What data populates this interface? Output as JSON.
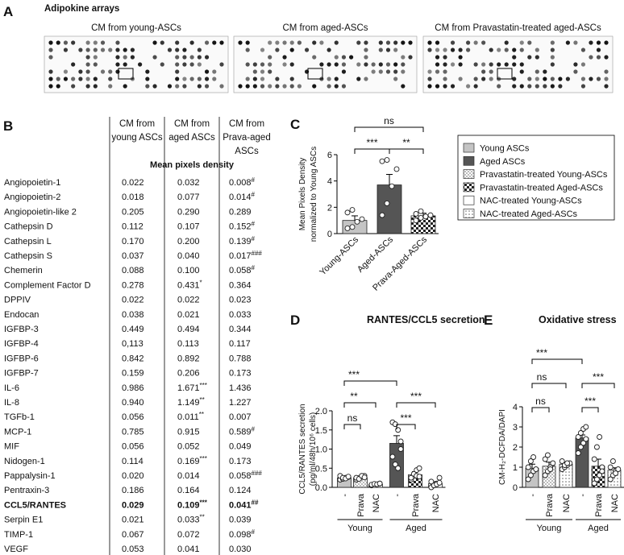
{
  "panel_a": {
    "label": "A",
    "title": "Adipokine arrays",
    "captions": [
      "CM from young-ASCs",
      "CM from aged-ASCs",
      "CM from Pravastatin-treated aged-ASCs"
    ]
  },
  "panel_b": {
    "label": "B",
    "columns": [
      "CM from young ASCs",
      "CM from aged ASCs",
      "CM from Prava-aged ASCs"
    ],
    "subheader": "Mean pixels density",
    "bold_row": 22,
    "rows": [
      [
        "Angiopoietin-1",
        "0.022",
        "0.032",
        {
          "text": "0.008",
          "sup": "#"
        }
      ],
      [
        "Angiopoietin-2",
        "0.018",
        "0.077",
        {
          "text": "0.014",
          "sup": "#"
        }
      ],
      [
        "Angiopoietin-like 2",
        "0.205",
        "0.290",
        "0.289"
      ],
      [
        "Cathepsin D",
        "0.112",
        "0.107",
        {
          "text": "0.152",
          "sup": "#"
        }
      ],
      [
        "Cathepsin L",
        "0.170",
        "0.200",
        {
          "text": "0.139",
          "sup": "#"
        }
      ],
      [
        "Cathepsin S",
        "0.037",
        "0.040",
        {
          "text": "0.017",
          "sup": "###"
        }
      ],
      [
        "Chemerin",
        "0.088",
        "0.100",
        {
          "text": "0.058",
          "sup": "#"
        }
      ],
      [
        "Complement Factor D",
        "0.278",
        {
          "text": "0.431",
          "sup": "*"
        },
        "0.364"
      ],
      [
        "DPPIV",
        "0.022",
        "0.022",
        "0.023"
      ],
      [
        "Endocan",
        "0.038",
        "0.021",
        "0.033"
      ],
      [
        "IGFBP-3",
        "0.449",
        "0.494",
        "0.344"
      ],
      [
        "IGFBP-4",
        "0,113",
        "0.113",
        "0.117"
      ],
      [
        "IGFBP-6",
        "0.842",
        "0.892",
        "0.788"
      ],
      [
        "IGFBP-7",
        "0.159",
        "0.206",
        "0.173"
      ],
      [
        "IL-6",
        "0.986",
        {
          "text": "1.671",
          "sup": "***"
        },
        "1.436"
      ],
      [
        "IL-8",
        "0.940",
        {
          "text": "1.149",
          "sup": "**"
        },
        "1.227"
      ],
      [
        "TGFb-1",
        "0.056",
        {
          "text": "0.011",
          "sup": "**"
        },
        "0.007"
      ],
      [
        "MCP-1",
        "0.785",
        "0.915",
        {
          "text": "0.589",
          "sup": "#"
        }
      ],
      [
        "MIF",
        "0.056",
        "0.052",
        "0.049"
      ],
      [
        "Nidogen-1",
        "0.114",
        {
          "text": "0.169",
          "sup": "***"
        },
        "0.173"
      ],
      [
        "Pappalysin-1",
        "0.020",
        "0.014",
        {
          "text": "0.058",
          "sup": "###"
        }
      ],
      [
        "Pentraxin-3",
        "0.186",
        "0.164",
        "0.124"
      ],
      [
        "CCL5/RANTES",
        "0.029",
        {
          "text": "0.109",
          "sup": "***"
        },
        {
          "text": "0.041",
          "sup": "##"
        }
      ],
      [
        "Serpin E1",
        "0.021",
        {
          "text": "0.033",
          "sup": "**"
        },
        "0.039"
      ],
      [
        "TIMP-1",
        "0.067",
        "0.072",
        {
          "text": "0.098",
          "sup": "#"
        }
      ],
      [
        "VEGF",
        "0.053",
        "0.041",
        "0.030"
      ]
    ]
  },
  "legend": [
    {
      "name": "Young ASCs",
      "pattern": "gray"
    },
    {
      "name": "Aged ASCs",
      "pattern": "dark"
    },
    {
      "name": "Pravastatin-treated Young-ASCs",
      "pattern": "grid-light"
    },
    {
      "name": "Pravastatin-treated Aged-ASCs",
      "pattern": "checker-dark"
    },
    {
      "name": "NAC-treated Young-ASCs",
      "pattern": "white"
    },
    {
      "name": "NAC-treated Aged-ASCs",
      "pattern": "dots"
    }
  ],
  "chart_data": [
    {
      "type": "bar",
      "panel": "C",
      "ylabel": [
        "Mean Pixels Density",
        "normalized to Young ASCs"
      ],
      "categories": [
        "Young-ASCs",
        "Aged-ASCs",
        "Prava-Aged-ASCs"
      ],
      "values": [
        1.0,
        3.7,
        1.35
      ],
      "errors": [
        0.35,
        0.8,
        0.2
      ],
      "patterns": [
        "gray",
        "dark",
        "checker-dark"
      ],
      "points": [
        [
          0.4,
          0.5,
          0.9,
          1.1,
          1.6,
          1.8
        ],
        [
          1.4,
          2.3,
          3.6,
          4.9,
          5.5,
          5.6
        ],
        [
          1.0,
          1.2,
          1.3,
          1.4,
          1.5,
          1.7
        ]
      ],
      "ylim": [
        0,
        6
      ],
      "yticks": [
        0,
        2,
        4,
        6
      ],
      "comparisons": [
        {
          "from": 0,
          "to": 1,
          "label": "***"
        },
        {
          "from": 1,
          "to": 2,
          "label": "**"
        },
        {
          "from": 0,
          "to": 2,
          "label": "ns"
        }
      ]
    },
    {
      "type": "bar",
      "panel": "D",
      "title": "RANTES/CCL5 secretion",
      "ylabel": [
        "CCL5/RANTES secretion",
        "(pg/ml/48h/10⁶ cells)"
      ],
      "categories": [
        "-",
        "Prava",
        "NAC",
        "-",
        "Prava",
        "NAC"
      ],
      "groups": [
        "Young",
        "Aged"
      ],
      "values": [
        0.25,
        0.25,
        0.08,
        1.15,
        0.33,
        0.1
      ],
      "errors": [
        0.03,
        0.03,
        0.02,
        0.2,
        0.08,
        0.05
      ],
      "patterns": [
        "gray",
        "grid-light",
        "white",
        "dark",
        "checker-dark",
        "dots"
      ],
      "points": [
        [
          0.2,
          0.22,
          0.25,
          0.27,
          0.3,
          0.25,
          0.23,
          0.28
        ],
        [
          0.2,
          0.24,
          0.27,
          0.3,
          0.25,
          0.22,
          0.3,
          0.26
        ],
        [
          0.05,
          0.06,
          0.08,
          0.1,
          0.07,
          0.09,
          0.08,
          0.1
        ],
        [
          1.7,
          1.65,
          1.5,
          1.2,
          0.8,
          0.6,
          0.5,
          1.0
        ],
        [
          0.2,
          0.3,
          0.45,
          0.5,
          0.25,
          0.35,
          0.3,
          0.28
        ],
        [
          0.0,
          0.05,
          0.1,
          0.25,
          0.15,
          0.05,
          0.08,
          0.12
        ]
      ],
      "ylim": [
        0,
        2
      ],
      "yticks": [
        {
          "value": 0,
          "label": "0.0"
        },
        0.5,
        {
          "value": 1,
          "label": "1.0"
        },
        1.5,
        {
          "value": 2,
          "label": "2.0"
        }
      ],
      "comparisons": [
        {
          "from": 0,
          "to": 1,
          "label": "ns"
        },
        {
          "from": 0,
          "to": 2,
          "label": "**"
        },
        {
          "from": 0,
          "to": 3,
          "label": "***"
        },
        {
          "from": 3,
          "to": 4,
          "label": "***"
        },
        {
          "from": 3,
          "to": 5,
          "label": "***"
        }
      ]
    },
    {
      "type": "bar",
      "panel": "E",
      "title": "Oxidative stress",
      "ylabel": [
        "CM-H₂-DCFDA/DAPI"
      ],
      "categories": [
        "-",
        "Prava",
        "NAC",
        "-",
        "Prava",
        "NAC"
      ],
      "groups": [
        "Young",
        "Aged"
      ],
      "values": [
        0.95,
        1.05,
        1.15,
        2.45,
        1.05,
        0.85
      ],
      "errors": [
        0.2,
        0.2,
        0.1,
        0.15,
        0.35,
        0.12
      ],
      "patterns": [
        "gray",
        "grid-light",
        "dots",
        "dark",
        "checker-dark",
        "dots"
      ],
      "points": [
        [
          0.4,
          0.6,
          0.8,
          0.9,
          1.0,
          1.3,
          1.5
        ],
        [
          0.6,
          0.8,
          1.0,
          1.2,
          1.4,
          1.6,
          0.9
        ],
        [
          0.9,
          1.0,
          1.1,
          1.2,
          1.3,
          1.1,
          1.2
        ],
        [
          1.7,
          2.0,
          2.2,
          2.4,
          2.5,
          2.7,
          2.9,
          3.0
        ],
        [
          0.2,
          0.4,
          0.6,
          1.0,
          1.4,
          2.0,
          2.5,
          0.8
        ],
        [
          0.4,
          0.6,
          0.8,
          0.9,
          1.0,
          1.3,
          0.7
        ]
      ],
      "ylim": [
        0,
        4
      ],
      "yticks": [
        0,
        1,
        2,
        3,
        4
      ],
      "comparisons": [
        {
          "from": 0,
          "to": 1,
          "label": "ns"
        },
        {
          "from": 0,
          "to": 2,
          "label": "ns"
        },
        {
          "from": 0,
          "to": 3,
          "label": "***"
        },
        {
          "from": 3,
          "to": 4,
          "label": "***"
        },
        {
          "from": 3,
          "to": 5,
          "label": "***"
        }
      ]
    }
  ]
}
